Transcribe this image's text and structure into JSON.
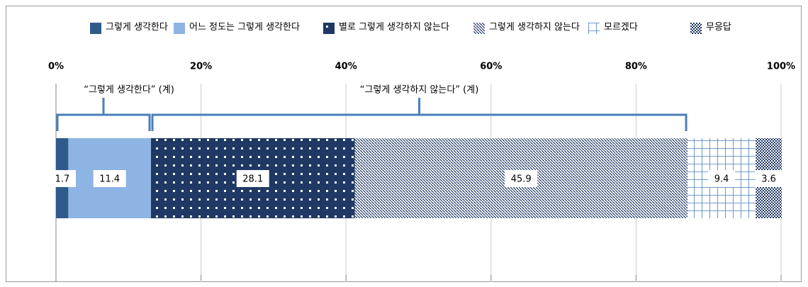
{
  "chart_data": {
    "type": "stacked_bar_horizontal",
    "series": [
      {
        "name": "그렇게 생각한다",
        "color": "#2f5a8c",
        "pattern": "solid",
        "values": [
          1.7
        ]
      },
      {
        "name": "어느 정도는 그렇게 생각한다",
        "color": "#8eb4e3",
        "pattern": "solid",
        "values": [
          11.4
        ]
      },
      {
        "name": "별로 그렇게 생각하지 않는다",
        "color": "#1f3864",
        "pattern": "dots",
        "values": [
          28.1
        ]
      },
      {
        "name": "그렇게 생각하지 않는다",
        "color": "#1f3864",
        "pattern": "hatch",
        "values": [
          45.9
        ]
      },
      {
        "name": "모르겠다",
        "color": "#4a7ebb",
        "pattern": "grid",
        "values": [
          9.4
        ]
      },
      {
        "name": "무응답",
        "color": "#1f3864",
        "pattern": "checker",
        "values": [
          3.6
        ]
      }
    ],
    "xlim": [
      0,
      100
    ],
    "xticks": [
      {
        "value": 0,
        "label": "0%"
      },
      {
        "value": 20,
        "label": "20%"
      },
      {
        "value": 40,
        "label": "40%"
      },
      {
        "value": 60,
        "label": "60%"
      },
      {
        "value": 80,
        "label": "80%"
      },
      {
        "value": 100,
        "label": "100%"
      }
    ],
    "grid": true,
    "annotations": [
      "“그렇게 생각한다” (계)",
      "“그렇게 생각하지 않는다” (계)"
    ]
  }
}
